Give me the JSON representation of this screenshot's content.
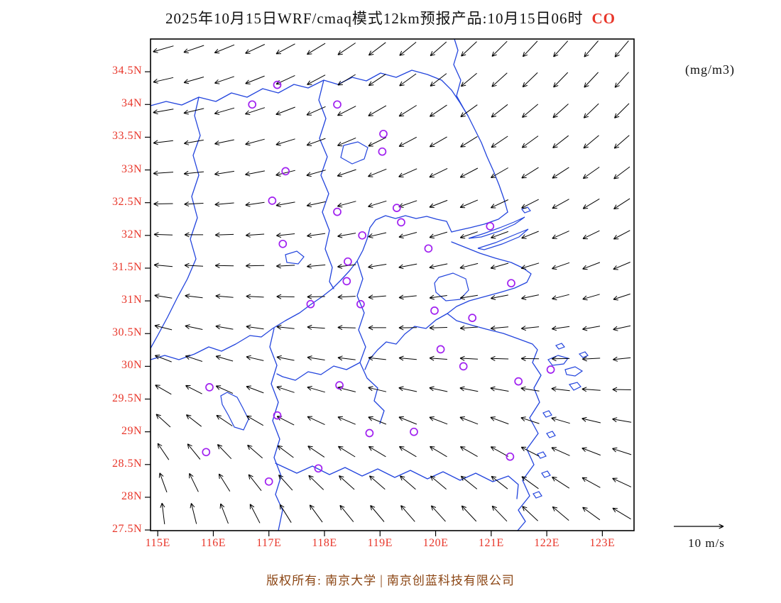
{
  "title": {
    "main": "2025年10月15日WRF/cmaq模式12km预报产品:10月15日06时",
    "species": "CO"
  },
  "units_label": "(mg/m3)",
  "legend": {
    "speed_label": "10 m/s"
  },
  "copyright": {
    "left": "版权所有: 南京大学",
    "separator": "|",
    "right": "南京创蓝科技有限公司"
  },
  "colors": {
    "axis_label": "#e8362a",
    "species": "#e8362a",
    "boundary": "#2244dd",
    "station": "#a020f0",
    "arrow": "#000000",
    "copyright": "#8b4513",
    "frame": "#000000"
  },
  "map_extent": {
    "lon_min": 114.87,
    "lon_max": 123.57,
    "lat_min": 27.49,
    "lat_max": 35.0
  },
  "axes": {
    "lat_ticks": [
      {
        "value": 34.5,
        "label": "34.5N"
      },
      {
        "value": 34.0,
        "label": "34N"
      },
      {
        "value": 33.5,
        "label": "33.5N"
      },
      {
        "value": 33.0,
        "label": "33N"
      },
      {
        "value": 32.5,
        "label": "32.5N"
      },
      {
        "value": 32.0,
        "label": "32N"
      },
      {
        "value": 31.5,
        "label": "31.5N"
      },
      {
        "value": 31.0,
        "label": "31N"
      },
      {
        "value": 30.5,
        "label": "30.5N"
      },
      {
        "value": 30.0,
        "label": "30N"
      },
      {
        "value": 29.5,
        "label": "29.5N"
      },
      {
        "value": 29.0,
        "label": "29N"
      },
      {
        "value": 28.5,
        "label": "28.5N"
      },
      {
        "value": 28.0,
        "label": "28N"
      },
      {
        "value": 27.5,
        "label": "27.5N"
      }
    ],
    "lon_ticks": [
      {
        "value": 115,
        "label": "115E"
      },
      {
        "value": 116,
        "label": "116E"
      },
      {
        "value": 117,
        "label": "117E"
      },
      {
        "value": 118,
        "label": "118E"
      },
      {
        "value": 119,
        "label": "119E"
      },
      {
        "value": 120,
        "label": "120E"
      },
      {
        "value": 121,
        "label": "121E"
      },
      {
        "value": 122,
        "label": "122E"
      },
      {
        "value": 123,
        "label": "123E"
      }
    ]
  },
  "stations": [
    [
      117.15,
      34.3
    ],
    [
      116.7,
      34.0
    ],
    [
      118.23,
      34.0
    ],
    [
      119.06,
      33.55
    ],
    [
      119.04,
      33.28
    ],
    [
      117.3,
      32.98
    ],
    [
      117.06,
      32.53
    ],
    [
      118.23,
      32.36
    ],
    [
      119.3,
      32.42
    ],
    [
      119.38,
      32.2
    ],
    [
      118.68,
      32.0
    ],
    [
      120.98,
      32.14
    ],
    [
      119.87,
      31.8
    ],
    [
      117.25,
      31.87
    ],
    [
      118.42,
      31.6
    ],
    [
      118.4,
      31.3
    ],
    [
      121.36,
      31.27
    ],
    [
      117.75,
      30.95
    ],
    [
      118.65,
      30.95
    ],
    [
      119.98,
      30.85
    ],
    [
      120.66,
      30.74
    ],
    [
      120.09,
      30.26
    ],
    [
      120.5,
      30.0
    ],
    [
      122.07,
      29.95
    ],
    [
      121.49,
      29.77
    ],
    [
      115.93,
      29.68
    ],
    [
      118.27,
      29.71
    ],
    [
      117.15,
      29.25
    ],
    [
      118.81,
      28.98
    ],
    [
      119.61,
      29.0
    ],
    [
      115.87,
      28.69
    ],
    [
      121.34,
      28.62
    ],
    [
      117.89,
      28.44
    ],
    [
      117.0,
      28.24
    ]
  ],
  "wind": {
    "rows": 16,
    "cols": 16,
    "lon0": 115.1,
    "dlon": 0.55,
    "lat0": 34.85,
    "dlat": 0.4733,
    "row_lengths": [
      30,
      29,
      29,
      28,
      28,
      27,
      26,
      26,
      25,
      25,
      25,
      26,
      27,
      28,
      29,
      30
    ],
    "angles": [
      [
        196,
        199,
        202,
        205,
        208,
        211,
        214,
        217,
        219,
        221,
        223,
        225,
        227,
        228,
        229,
        230
      ],
      [
        193,
        196,
        199,
        202,
        205,
        208,
        211,
        214,
        216,
        218,
        220,
        222,
        224,
        226,
        227,
        228
      ],
      [
        190,
        193,
        196,
        198,
        201,
        204,
        207,
        210,
        212,
        214,
        216,
        218,
        220,
        222,
        224,
        225
      ],
      [
        187,
        190,
        192,
        195,
        197,
        200,
        203,
        206,
        208,
        210,
        212,
        214,
        216,
        218,
        220,
        221
      ],
      [
        184,
        186,
        189,
        191,
        194,
        196,
        199,
        202,
        204,
        206,
        208,
        210,
        212,
        213,
        215,
        217
      ],
      [
        181,
        183,
        185,
        188,
        190,
        192,
        195,
        197,
        199,
        201,
        203,
        205,
        207,
        209,
        211,
        213
      ],
      [
        178,
        180,
        182,
        184,
        186,
        188,
        190,
        193,
        195,
        197,
        199,
        200,
        202,
        204,
        206,
        208
      ],
      [
        175,
        177,
        179,
        181,
        183,
        185,
        187,
        189,
        191,
        192,
        194,
        196,
        197,
        199,
        201,
        203
      ],
      [
        171,
        173,
        175,
        177,
        179,
        181,
        183,
        185,
        186,
        188,
        189,
        191,
        192,
        194,
        196,
        198
      ],
      [
        166,
        168,
        170,
        172,
        174,
        176,
        178,
        180,
        181,
        182,
        184,
        185,
        186,
        188,
        190,
        192
      ],
      [
        159,
        162,
        164,
        167,
        169,
        171,
        173,
        174,
        175,
        176,
        177,
        178,
        179,
        181,
        183,
        186
      ],
      [
        150,
        153,
        156,
        159,
        162,
        164,
        166,
        167,
        168,
        168,
        169,
        170,
        171,
        173,
        176,
        179
      ],
      [
        138,
        142,
        146,
        150,
        153,
        155,
        157,
        158,
        158,
        159,
        159,
        160,
        162,
        164,
        167,
        170
      ],
      [
        124,
        129,
        134,
        139,
        143,
        146,
        148,
        149,
        149,
        149,
        150,
        151,
        153,
        156,
        159,
        162
      ],
      [
        110,
        116,
        122,
        128,
        132,
        136,
        138,
        139,
        139,
        140,
        141,
        142,
        144,
        147,
        151,
        155
      ],
      [
        97,
        104,
        111,
        117,
        122,
        126,
        129,
        130,
        131,
        132,
        133,
        134,
        137,
        140,
        144,
        149
      ]
    ]
  },
  "geometry": {
    "coast": [
      "M 428 0 L 433 16 427 36 437 58 431 80 441 98 447 108 456 126 466 146 474 166 483 186 491 206 498 226 503 244",
      "M 503 244 L 490 254 470 261 450 266 432 270 424 272",
      "M 424 286 L 444 294 464 302 486 309 508 315 525 323 536 331 530 343 513 351 493 357 471 363 449 369 431 377 418 387 431 397 451 403 473 409 497 415 519 423 538 430 545 438 538 456 550 474 540 492 548 512 534 534 546 556 530 578 540 600 524 622 534 644 518 664 528 680 517 693"
    ],
    "rivers": [
      "M 0 452 L 20 446 40 452 62 444 82 434 100 440 120 430 140 418 156 420 172 408 190 397 210 386 226 374 242 363 256 352 268 340 280 327 291 313 299 298 305 282 309 266 317 255 331 249 345 253 359 249 374 253 389 250 403 254 417 257 424 272",
      "M 418 387 L 402 396 388 408 372 405 358 416 346 430 332 427 320 438 308 452 302 466"
    ],
    "borders": [
      "M 0 94 L 22 88 44 93 68 82 92 88 114 76 136 82 158 70 180 76 202 64 222 69 244 58 264 64 284 54 304 59 324 48 346 54 368 44 390 50 410 58 424 72 436 90 447 108",
      "M 68 82 L 62 108 70 136 60 164 68 192 58 222 66 252 56 282 64 310 52 338 38 364 24 392 10 418 0 436",
      "M 244 58 L 237 86 247 112 238 140 249 166 240 192 251 218 242 244 252 270 246 296 256 322 252 342 258 352",
      "M 291 313 L 299 338 291 362 301 386 293 410 303 434 295 456 305 478 320 492 315 510 329 524 323 542",
      "M 295 456 L 276 466 258 461 240 473 222 469 204 481 186 476 178 472",
      "M 174 408 L 168 434 178 460 170 486 180 512 172 538 182 564 174 590 184 616 176 642 186 664 180 693",
      "M 176 598 L 206 612 228 602 252 614 274 604 298 616 320 606 344 618 366 608 390 620 412 610 436 622 458 612 482 624 504 616 518 628 516 648"
    ],
    "lakes": [
      "M 272 150 L 292 145 306 153 301 169 284 176 268 167 Z",
      "M 190 304 L 206 299 216 307 208 317 192 315 Z",
      "M 406 336 L 426 330 444 338 448 354 436 367 416 369 402 357 400 344 Z",
      "M 108 498 L 122 505 130 520 138 536 131 551 118 547 110 531 101 515 99 503 Z"
    ],
    "islands": [
      "M 448 281 L 470 274 492 266 512 258 527 251 513 261 491 271 466 279 448 281",
      "M 461 295 L 486 287 510 277 532 268 519 279 495 289 470 297 461 295",
      "M 560 452 L 574 446 588 450 582 458 566 460 Z",
      "M 584 466 L 598 462 608 468 598 475 586 473 Z",
      "M 604 444 L 612 441 616 446 609 449 Z",
      "M 571 432 L 579 429 583 434 575 437 Z",
      "M 590 487 L 601 484 606 490 596 495 Z",
      "M 553 527 L 561 524 565 530 557 533 Z",
      "M 558 556 L 566 553 570 559 562 562 Z",
      "M 545 585 L 553 582 557 588 549 591 Z",
      "M 551 612 L 559 609 563 615 555 618 Z",
      "M 539 641 L 547 638 551 644 543 647 Z",
      "M 523 240 L 531 237 535 242 527 245 Z"
    ]
  }
}
